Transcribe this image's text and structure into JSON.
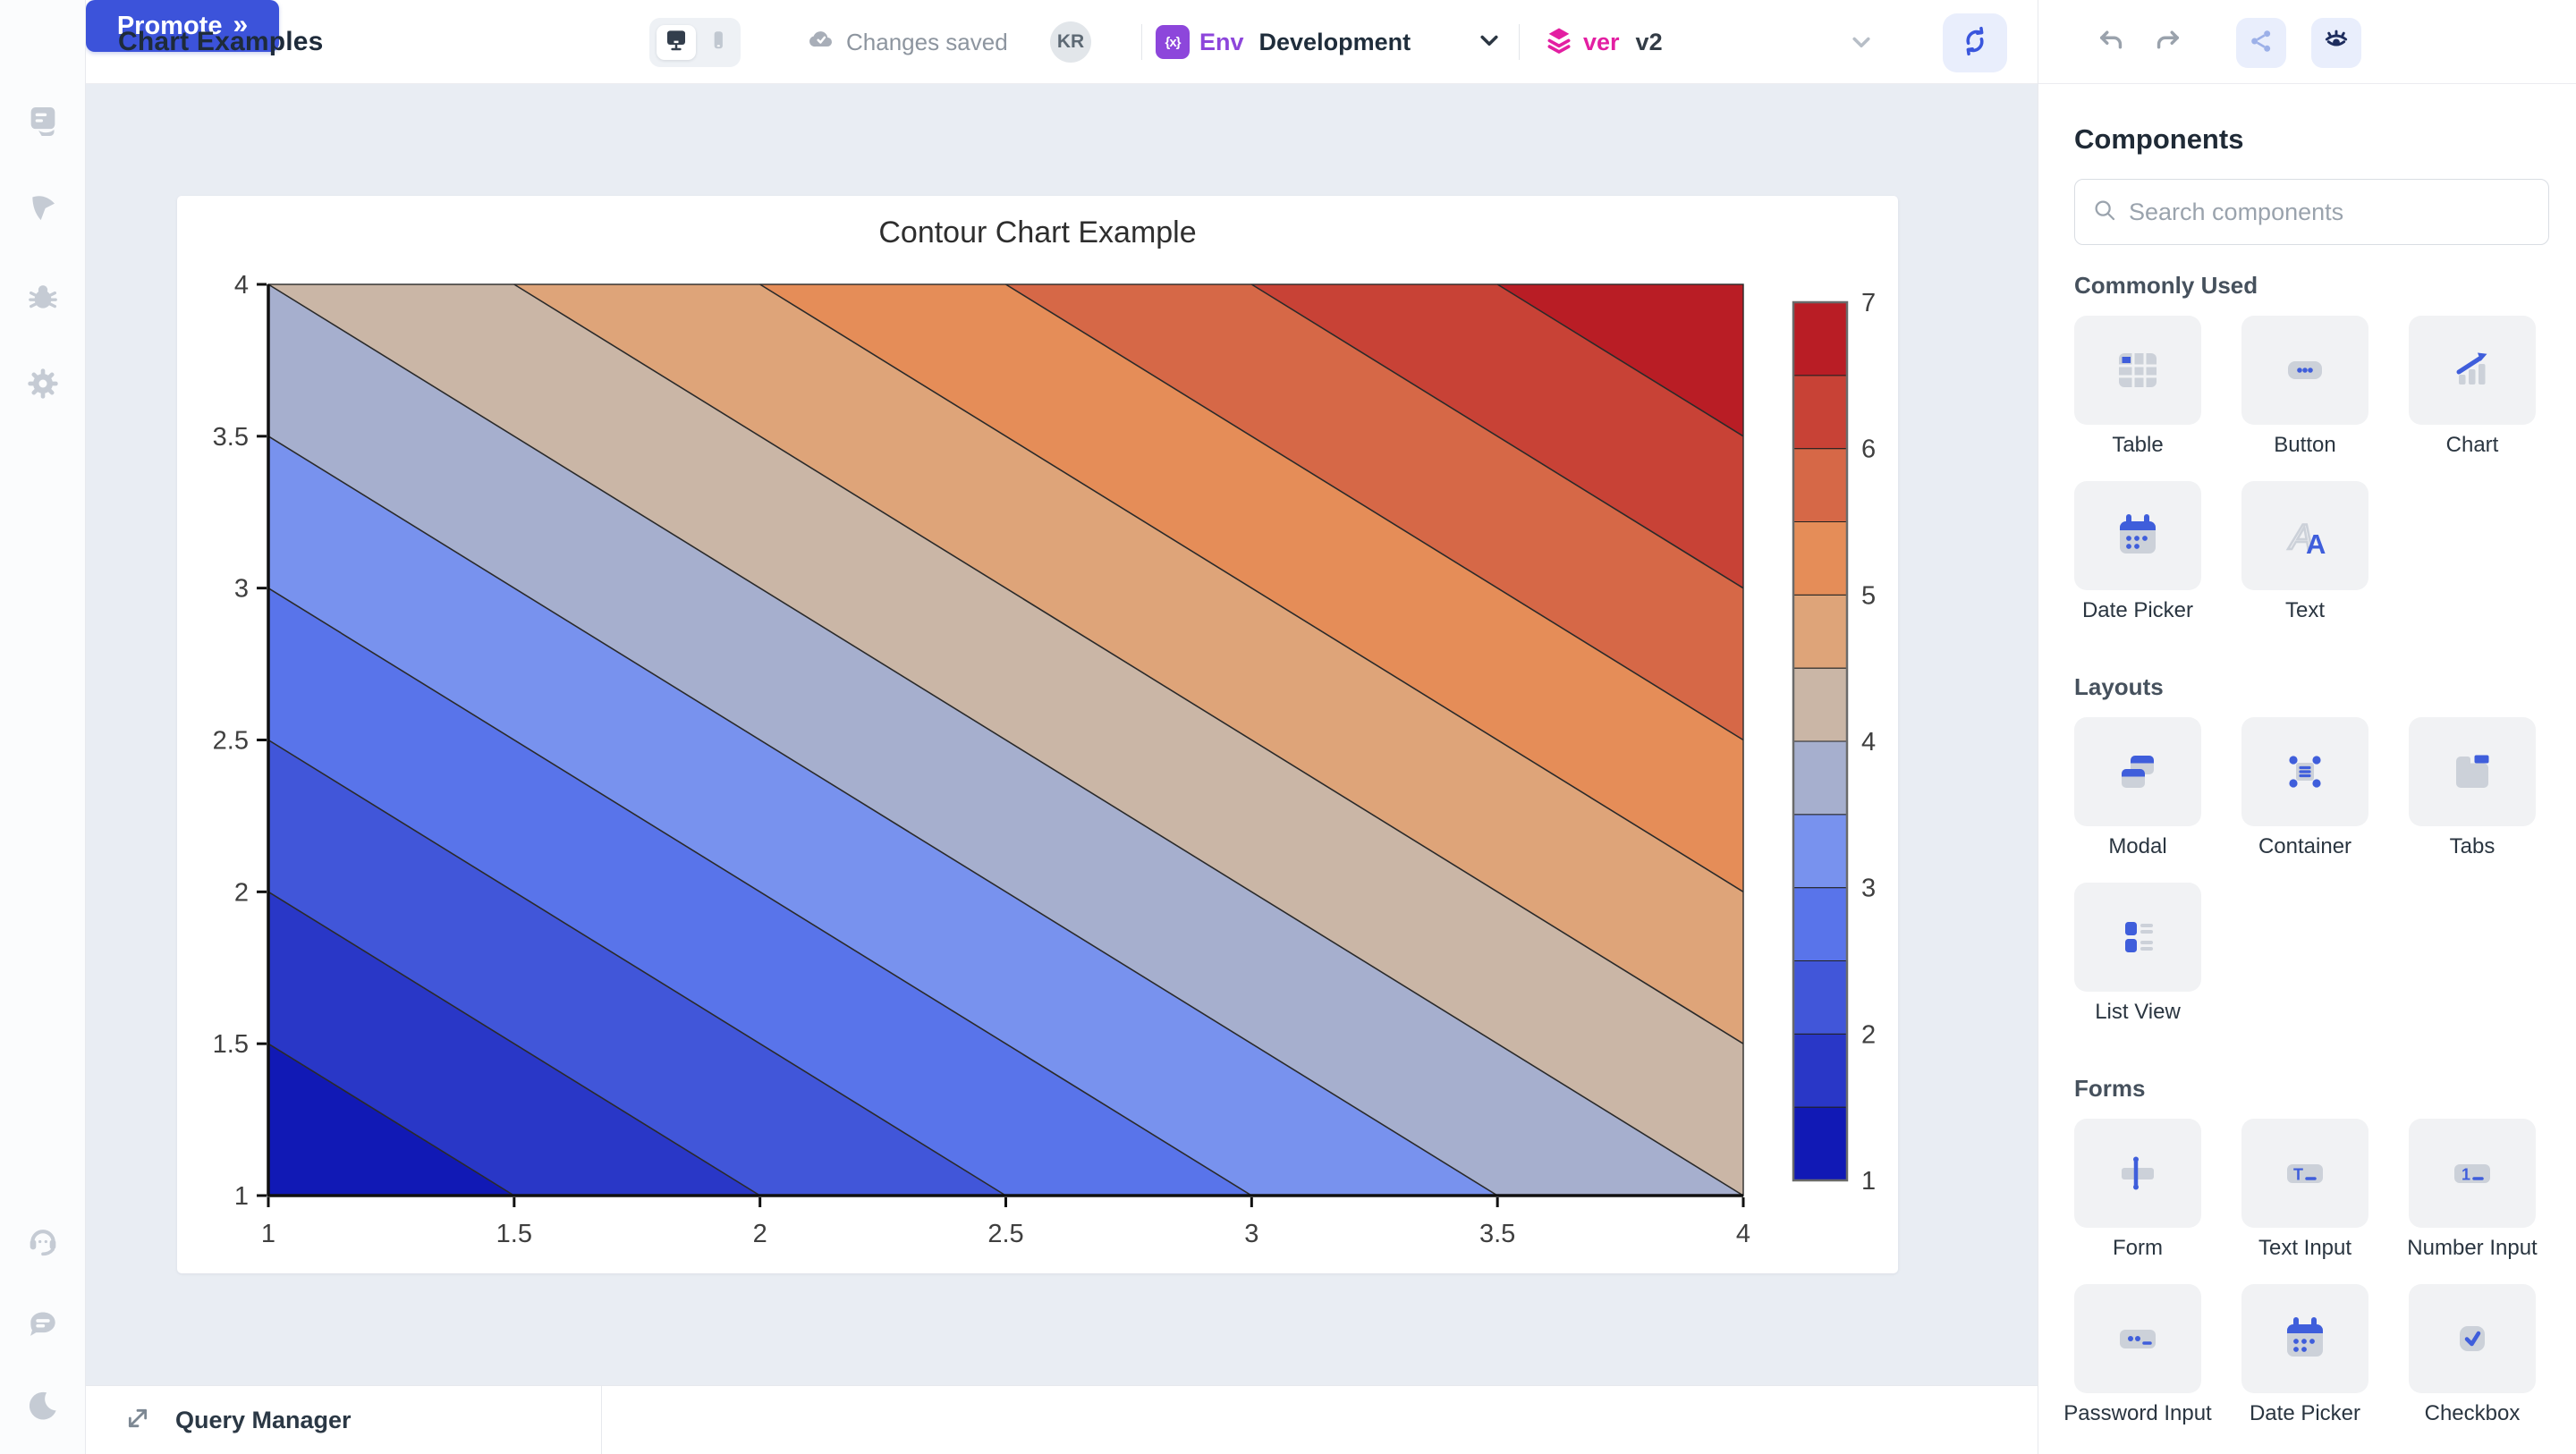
{
  "header": {
    "app_title": "Chart Examples",
    "status_text": "Changes saved",
    "avatar_initials": "KR",
    "environment": {
      "badge": "{x}",
      "label": "Env",
      "value": "Development"
    },
    "version": {
      "label": "ver",
      "value": "v2"
    },
    "promote_label": "Promote",
    "promote_chevron": "»"
  },
  "left_rail": {
    "top_items": [
      {
        "icon": "script-icon"
      },
      {
        "icon": "navigate-icon"
      },
      {
        "icon": "debug-icon"
      },
      {
        "icon": "settings-icon"
      }
    ],
    "bottom_items": [
      {
        "icon": "support-icon"
      },
      {
        "icon": "chat-icon"
      },
      {
        "icon": "dark-mode-icon"
      }
    ]
  },
  "chart_data": {
    "type": "heatmap",
    "variant": "filled-contour",
    "title": "Contour Chart Example",
    "x_range": [
      1,
      4
    ],
    "y_range": [
      1,
      4
    ],
    "z_range": [
      1,
      7
    ],
    "z_formula": "z = x + y - 1",
    "contour_interval": 0.5,
    "x_ticks": [
      "1",
      "1.5",
      "2",
      "2.5",
      "3",
      "3.5",
      "4"
    ],
    "y_ticks": [
      "1",
      "1.5",
      "2",
      "2.5",
      "3",
      "3.5",
      "4"
    ],
    "colorbar_ticks": [
      "1",
      "2",
      "3",
      "4",
      "5",
      "6",
      "7"
    ],
    "contour_levels": [
      1,
      1.5,
      2,
      2.5,
      3,
      3.5,
      4,
      4.5,
      5,
      5.5,
      6,
      6.5,
      7
    ],
    "band_colors": [
      "#1119b5",
      "#2937c7",
      "#4156d9",
      "#5974ea",
      "#7892ee",
      "#a6afce",
      "#cab6a6",
      "#dea479",
      "#e58d58",
      "#d66847",
      "#c84236",
      "#b91d25"
    ],
    "line_color": "#2a2a2a",
    "grid": false,
    "legend_position": "right-colorbar"
  },
  "components_panel": {
    "title": "Components",
    "search_placeholder": "Search components",
    "sections": [
      {
        "heading": "Commonly Used",
        "items": [
          {
            "label": "Table",
            "icon": "table-icon"
          },
          {
            "label": "Button",
            "icon": "button-icon"
          },
          {
            "label": "Chart",
            "icon": "chart-icon"
          },
          {
            "label": "Date Picker",
            "icon": "date-picker-icon"
          },
          {
            "label": "Text",
            "icon": "text-icon"
          }
        ]
      },
      {
        "heading": "Layouts",
        "items": [
          {
            "label": "Modal",
            "icon": "modal-icon"
          },
          {
            "label": "Container",
            "icon": "container-icon"
          },
          {
            "label": "Tabs",
            "icon": "tabs-icon"
          },
          {
            "label": "List View",
            "icon": "list-view-icon"
          }
        ]
      },
      {
        "heading": "Forms",
        "items": [
          {
            "label": "Form",
            "icon": "form-icon"
          },
          {
            "label": "Text Input",
            "icon": "text-input-icon"
          },
          {
            "label": "Number Input",
            "icon": "number-input-icon"
          },
          {
            "label": "Password Input",
            "icon": "password-input-icon"
          },
          {
            "label": "Date Picker",
            "icon": "date-picker-icon"
          },
          {
            "label": "Checkbox",
            "icon": "checkbox-icon"
          }
        ]
      }
    ]
  },
  "bottom_bar": {
    "label": "Query Manager"
  },
  "colors": {
    "accent_blue": "#3c53da",
    "icon_blue": "#3f5edb",
    "icon_gray": "#ccd1d9",
    "rail_icon_gray": "#c5cbd4",
    "env_purple": "#8d46db",
    "ver_pink": "#e31fa2",
    "canvas_bg": "#e9edf3"
  }
}
